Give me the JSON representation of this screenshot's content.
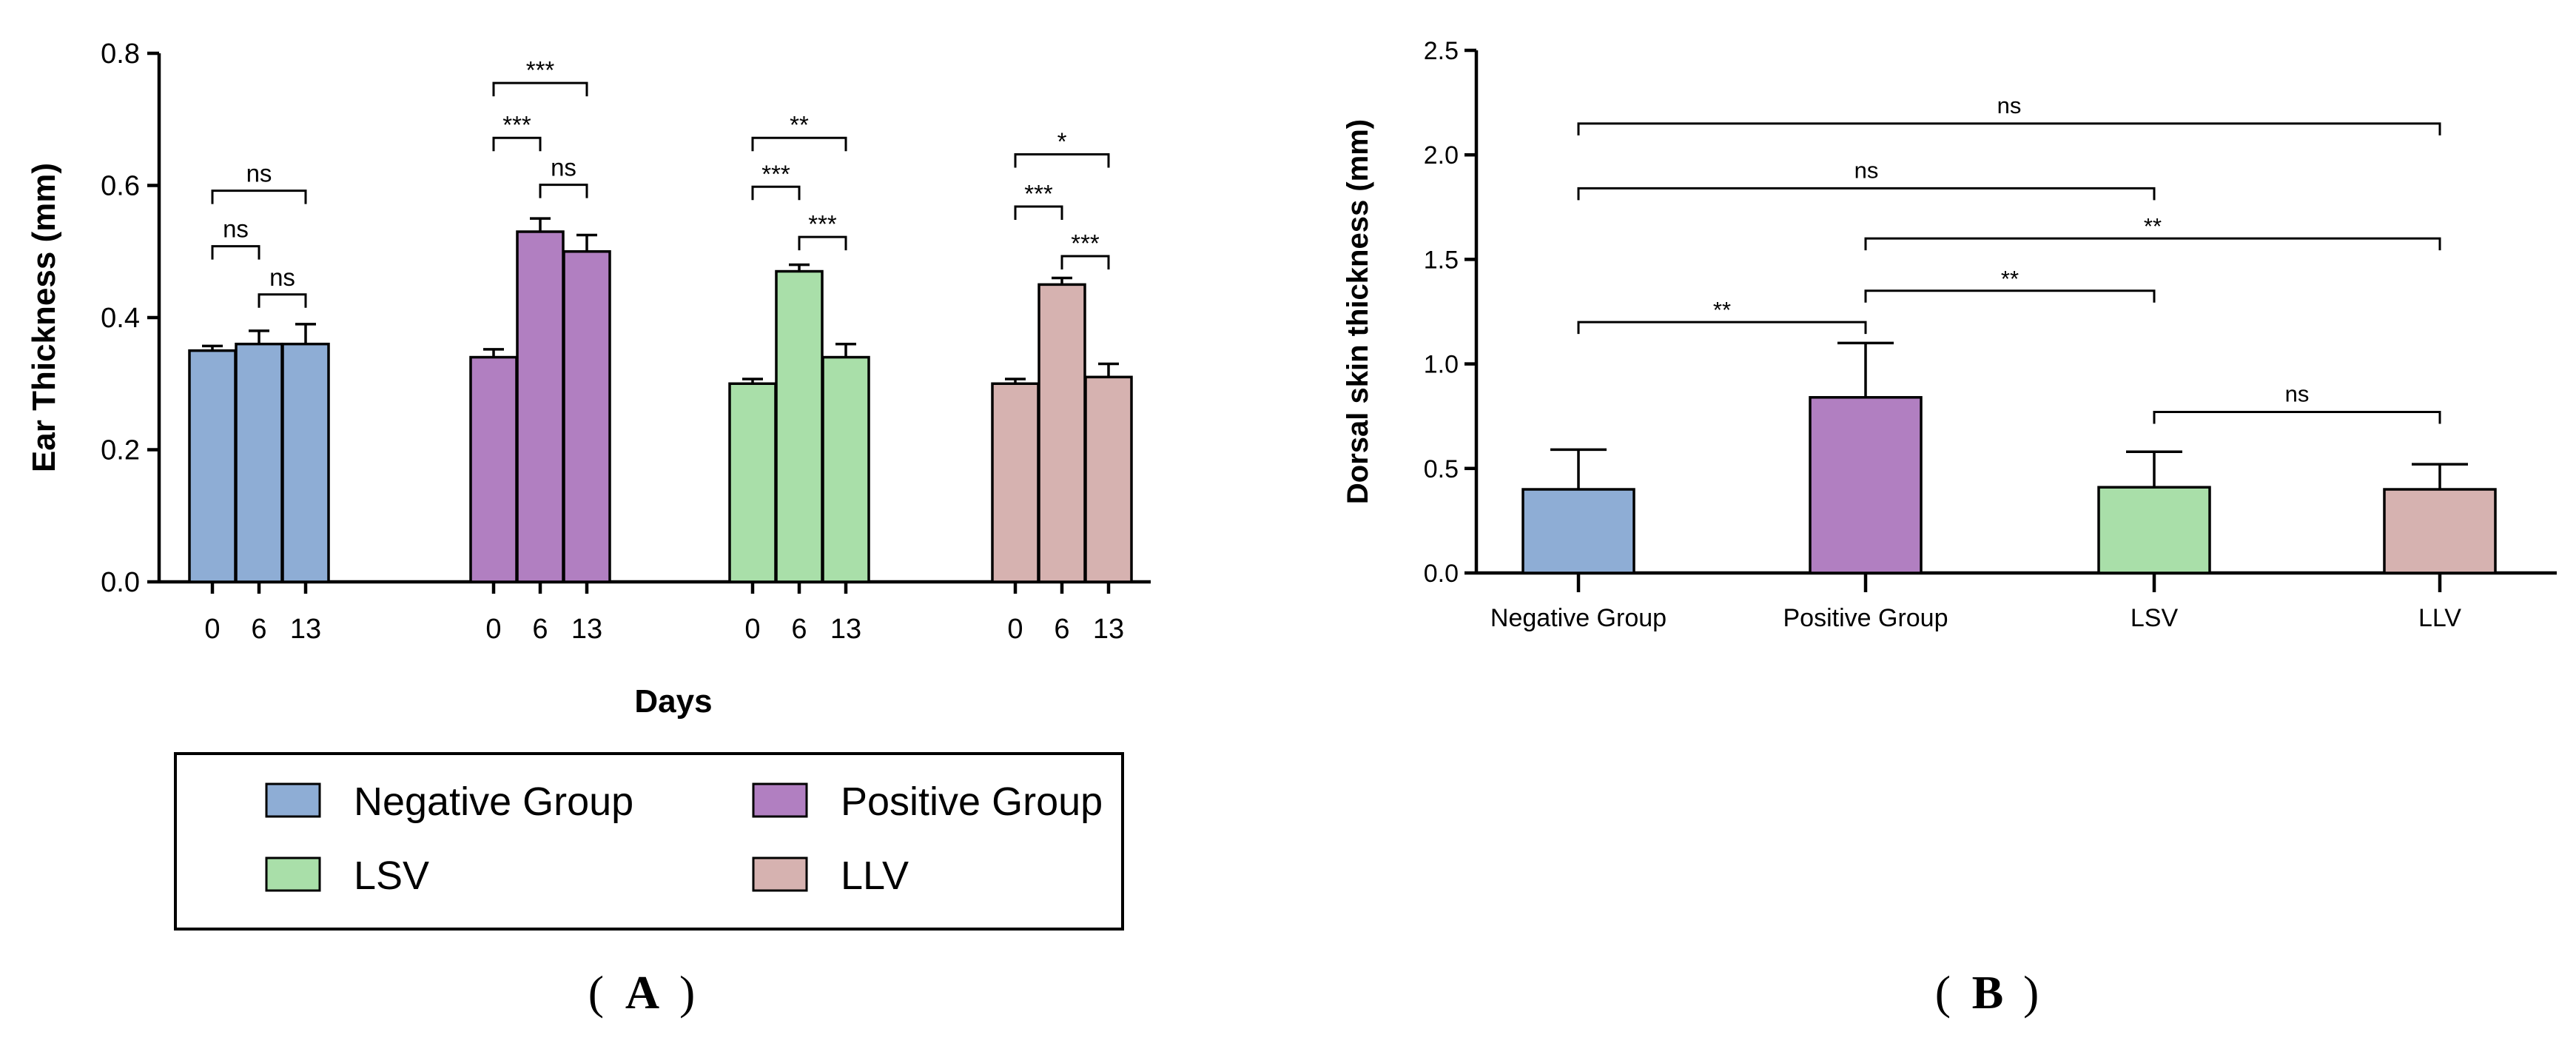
{
  "colors": {
    "Negative Group": "#8eadd5",
    "Positive Group": "#b17fc1",
    "LSV": "#a9dfa9",
    "LLV": "#d6b2b0"
  },
  "chart_data": [
    {
      "id": "A",
      "type": "bar",
      "panel_label": "A",
      "xlabel": "Days",
      "ylabel": "Ear Thickness (mm)",
      "ylim": [
        0,
        0.8
      ],
      "yticks": [
        "0.0",
        "0.2",
        "0.4",
        "0.6",
        "0.8"
      ],
      "categories": [
        "0",
        "6",
        "13"
      ],
      "series": [
        {
          "name": "Negative Group",
          "values": [
            0.35,
            0.36,
            0.36
          ],
          "errors": [
            0.007,
            0.02,
            0.03
          ]
        },
        {
          "name": "Positive Group",
          "values": [
            0.34,
            0.53,
            0.5
          ],
          "errors": [
            0.012,
            0.02,
            0.025
          ]
        },
        {
          "name": "LSV",
          "values": [
            0.3,
            0.47,
            0.34
          ],
          "errors": [
            0.007,
            0.01,
            0.02
          ]
        },
        {
          "name": "LLV",
          "values": [
            0.3,
            0.45,
            0.31
          ],
          "errors": [
            0.007,
            0.01,
            0.02
          ]
        }
      ],
      "comparisons": [
        {
          "series": 0,
          "from": 0,
          "to": 1,
          "y": 0.508,
          "label": "ns"
        },
        {
          "series": 0,
          "from": 1,
          "to": 2,
          "y": 0.435,
          "label": "ns"
        },
        {
          "series": 0,
          "from": 0,
          "to": 2,
          "y": 0.592,
          "label": "ns"
        },
        {
          "series": 1,
          "from": 0,
          "to": 1,
          "y": 0.672,
          "label": "***"
        },
        {
          "series": 1,
          "from": 1,
          "to": 2,
          "y": 0.601,
          "label": "ns"
        },
        {
          "series": 1,
          "from": 0,
          "to": 2,
          "y": 0.755,
          "label": "***"
        },
        {
          "series": 2,
          "from": 0,
          "to": 1,
          "y": 0.598,
          "label": "***"
        },
        {
          "series": 2,
          "from": 1,
          "to": 2,
          "y": 0.522,
          "label": "***"
        },
        {
          "series": 2,
          "from": 0,
          "to": 2,
          "y": 0.672,
          "label": "**"
        },
        {
          "series": 3,
          "from": 0,
          "to": 1,
          "y": 0.568,
          "label": "***"
        },
        {
          "series": 3,
          "from": 1,
          "to": 2,
          "y": 0.493,
          "label": "***"
        },
        {
          "series": 3,
          "from": 0,
          "to": 2,
          "y": 0.647,
          "label": "*"
        }
      ]
    },
    {
      "id": "B",
      "type": "bar",
      "panel_label": "B",
      "xlabel": "",
      "ylabel": "Dorsal skin thickness (mm)",
      "ylim": [
        0,
        2.5
      ],
      "yticks": [
        "0.0",
        "0.5",
        "1.0",
        "1.5",
        "2.0",
        "2.5"
      ],
      "categories": [
        "Negative Group",
        "Positive Group",
        "LSV",
        "LLV"
      ],
      "values": [
        0.4,
        0.84,
        0.41,
        0.4
      ],
      "errors": [
        0.19,
        0.26,
        0.17,
        0.12
      ],
      "comparisons": [
        {
          "from": 0,
          "to": 3,
          "y": 2.15,
          "label": "ns"
        },
        {
          "from": 0,
          "to": 2,
          "y": 1.84,
          "label": "ns"
        },
        {
          "from": 1,
          "to": 3,
          "y": 1.6,
          "label": "**"
        },
        {
          "from": 1,
          "to": 2,
          "y": 1.35,
          "label": "**"
        },
        {
          "from": 0,
          "to": 1,
          "y": 1.2,
          "label": "**"
        },
        {
          "from": 2,
          "to": 3,
          "y": 0.77,
          "label": "ns"
        }
      ]
    }
  ],
  "legend": {
    "items": [
      "Negative Group",
      "Positive Group",
      "LSV",
      "LLV"
    ]
  }
}
